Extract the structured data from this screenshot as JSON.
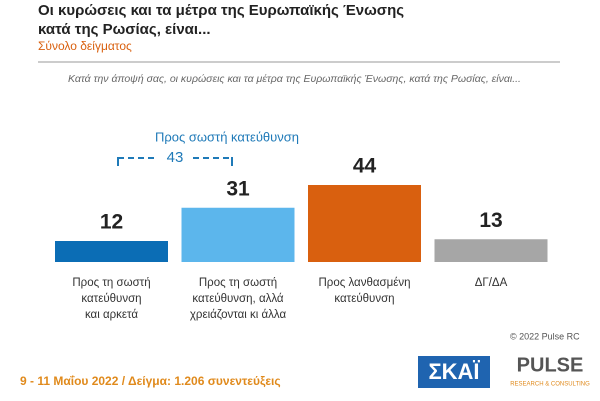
{
  "chart_data": {
    "type": "bar",
    "title": [
      "Οι κυρώσεις και τα μέτρα της Ευρωπαϊκής Ένωσης",
      "κατά της Ρωσίας, είναι..."
    ],
    "subtitle": "Σύνολο δείγματος",
    "question": "Κατά την άποψή σας, οι κυρώσεις και τα μέτρα της Ευρωπαϊκής Ένωσης, κατά της Ρωσίας, είναι...",
    "categories": [
      [
        "Προς τη σωστή",
        "κατεύθυνση",
        "και αρκετά"
      ],
      [
        "Προς τη σωστή",
        "κατεύθυνση, αλλά",
        "χρειάζονται κι άλλα"
      ],
      [
        "Προς λανθασμένη",
        "κατεύθυνση"
      ],
      [
        "ΔΓ/ΔΑ"
      ]
    ],
    "values": [
      12,
      31,
      44,
      13
    ],
    "colors": [
      "#0b6db5",
      "#5cb6ec",
      "#d9600f",
      "#a6a6a6"
    ],
    "annotation": {
      "text": "Προς σωστή κατεύθυνση",
      "value": 43
    },
    "copyright": "© 2022 Pulse RC",
    "footer": "9 - 11 Μαΐου 2022 / Δείγμα: 1.206 συνεντεύξεις",
    "logos": [
      "ΣΚΑΪ",
      "PULSE",
      "RESEARCH & CONSULTING"
    ]
  }
}
